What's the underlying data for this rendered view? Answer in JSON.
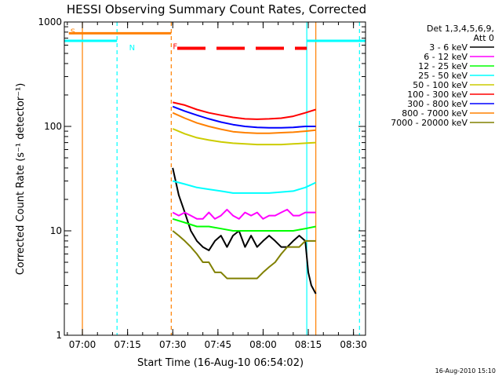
{
  "chart_data": {
    "type": "line",
    "title": "HESSI Observing Summary Count Rates, Corrected",
    "xlabel": "Start Time (16-Aug-10 06:54:02)",
    "ylabel": "Corrected Count Rate (s⁻¹ detector⁻¹)",
    "x_unit": "minutes since 06:54:02",
    "xlim": [
      0,
      100
    ],
    "ylim": [
      1,
      1000
    ],
    "yscale": "log",
    "x_ticks": [
      {
        "t": 6.0,
        "label": "07:00"
      },
      {
        "t": 21.0,
        "label": "07:15"
      },
      {
        "t": 36.0,
        "label": "07:30"
      },
      {
        "t": 51.0,
        "label": "07:45"
      },
      {
        "t": 66.0,
        "label": "08:00"
      },
      {
        "t": 81.0,
        "label": "08:15"
      },
      {
        "t": 96.0,
        "label": "08:30"
      }
    ],
    "y_ticks": [
      {
        "v": 1,
        "label": "1"
      },
      {
        "v": 10,
        "label": "10"
      },
      {
        "v": 100,
        "label": "100"
      },
      {
        "v": 1000,
        "label": "1000"
      }
    ],
    "legend": {
      "title_line1": "Det 1,3,4,5,6,9,",
      "title_line2": "Att 0",
      "position": "right"
    },
    "series": [
      {
        "name": "3 - 6 keV",
        "color": "#000000",
        "x": [
          36,
          38,
          40,
          42,
          44,
          46,
          48,
          50,
          52,
          54,
          56,
          58,
          60,
          62,
          64,
          66,
          68,
          70,
          72,
          74,
          76,
          78,
          80,
          81,
          82,
          83.5
        ],
        "y": [
          40,
          22,
          15,
          10,
          8,
          7,
          6.5,
          8,
          9,
          7,
          9,
          10,
          7,
          9,
          7,
          8,
          9,
          8,
          7,
          7,
          8,
          9,
          8,
          4,
          3,
          2.5
        ]
      },
      {
        "name": "6 - 12 keV",
        "color": "#ff00ff",
        "x": [
          36,
          38,
          40,
          42,
          44,
          46,
          48,
          50,
          52,
          54,
          56,
          58,
          60,
          62,
          64,
          66,
          68,
          70,
          72,
          74,
          76,
          78,
          80,
          82,
          83.5
        ],
        "y": [
          15,
          14,
          15,
          14,
          13,
          13,
          15,
          13,
          14,
          16,
          14,
          13,
          15,
          14,
          15,
          13,
          14,
          14,
          15,
          16,
          14,
          14,
          15,
          15,
          15
        ]
      },
      {
        "name": "12 - 25 keV",
        "color": "#00ff00",
        "x": [
          36,
          40,
          44,
          48,
          52,
          56,
          60,
          64,
          68,
          72,
          76,
          80,
          83.5
        ],
        "y": [
          13,
          12,
          11,
          11,
          10.5,
          10,
          10,
          10,
          10,
          10,
          10,
          10.5,
          11
        ]
      },
      {
        "name": "25 - 50 keV",
        "color": "#00ffff",
        "x": [
          36,
          40,
          44,
          48,
          52,
          56,
          60,
          64,
          68,
          72,
          76,
          80,
          83.5
        ],
        "y": [
          30,
          28,
          26,
          25,
          24,
          23,
          23,
          23,
          23,
          23.5,
          24,
          26,
          29
        ]
      },
      {
        "name": "50 - 100 keV",
        "color": "#cccc00",
        "x": [
          36,
          40,
          44,
          48,
          52,
          56,
          60,
          64,
          68,
          72,
          76,
          80,
          83.5
        ],
        "y": [
          95,
          85,
          78,
          74,
          71,
          69,
          68,
          67,
          67,
          67,
          68,
          69,
          70
        ]
      },
      {
        "name": "100 - 300 keV",
        "color": "#ff0000",
        "x": [
          36,
          40,
          44,
          48,
          52,
          56,
          60,
          64,
          68,
          72,
          76,
          80,
          83.5
        ],
        "y": [
          170,
          160,
          145,
          135,
          128,
          122,
          118,
          117,
          118,
          120,
          125,
          135,
          145
        ]
      },
      {
        "name": "300 - 800 keV",
        "color": "#0000ff",
        "x": [
          36,
          40,
          44,
          48,
          52,
          56,
          60,
          64,
          68,
          72,
          76,
          80,
          83.5
        ],
        "y": [
          155,
          140,
          128,
          118,
          110,
          104,
          100,
          98,
          97,
          97,
          98,
          100,
          100
        ]
      },
      {
        "name": "800 - 7000 keV",
        "color": "#ff8000",
        "x": [
          36,
          40,
          44,
          48,
          52,
          56,
          60,
          64,
          68,
          72,
          76,
          80,
          83.5
        ],
        "y": [
          135,
          120,
          108,
          100,
          94,
          89,
          87,
          86,
          86,
          87,
          88,
          90,
          92
        ]
      },
      {
        "name": "7000 - 20000 keV",
        "color": "#808000",
        "x": [
          36,
          38,
          40,
          42,
          44,
          46,
          48,
          50,
          52,
          54,
          56,
          58,
          60,
          62,
          64,
          66,
          68,
          70,
          72,
          74,
          76,
          78,
          80,
          82,
          83.5
        ],
        "y": [
          10,
          9,
          8,
          7,
          6,
          5,
          5,
          4,
          4,
          3.5,
          3.5,
          3.5,
          3.5,
          3.5,
          3.5,
          4,
          4.5,
          5,
          6,
          7,
          7,
          7,
          8,
          8,
          8
        ]
      }
    ],
    "orbit_flags": [
      {
        "label": "S",
        "color": "#ff8000",
        "x_start": 1.5,
        "x_end": 35.5,
        "level": 780,
        "style": "solid",
        "label_x": 1.5
      },
      {
        "label": "N",
        "color": "#00ffff",
        "x_start": 0,
        "x_end": 17.5,
        "level": 660,
        "style": "solid",
        "label_x": 21.0
      },
      {
        "label": "N",
        "color": "#00ffff",
        "x_start": 80.5,
        "x_end": 100,
        "level": 660,
        "style": "solid",
        "label_x": null
      },
      {
        "label": "F",
        "color": "#ff0000",
        "x_start": 37.5,
        "x_end": 80.5,
        "level": 560,
        "style": "dashed",
        "label_x": 35.5
      }
    ],
    "vertical_markers": [
      {
        "x": 6.0,
        "color": "#ff8000",
        "style": "solid"
      },
      {
        "x": 17.5,
        "color": "#00ffff",
        "style": "dashed"
      },
      {
        "x": 35.5,
        "color": "#ff8000",
        "style": "dashed"
      },
      {
        "x": 80.5,
        "color": "#00ffff",
        "style": "solid"
      },
      {
        "x": 98.0,
        "color": "#00ffff",
        "style": "dashed"
      },
      {
        "x": 83.5,
        "color": "#ff8000",
        "style": "solid"
      }
    ]
  },
  "footer": {
    "timestamp": "16-Aug-2010 15:10"
  }
}
